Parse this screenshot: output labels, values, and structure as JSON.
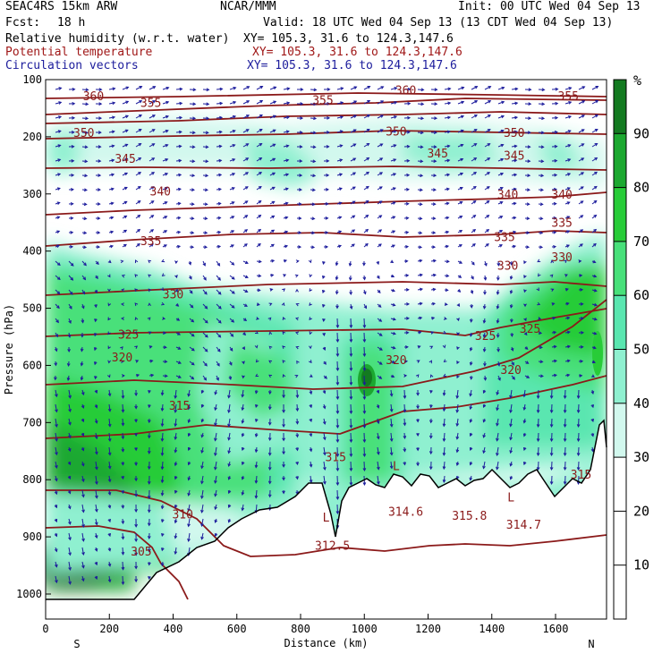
{
  "header": {
    "model": "SEAC4RS 15km ARW",
    "org": "NCAR/MMM",
    "init": "Init: 00 UTC Wed 04 Sep 13",
    "fcst_label": "Fcst:",
    "fcst_value": "18 h",
    "valid": "Valid: 18 UTC Wed 04 Sep 13 (13 CDT Wed 04 Sep 13)",
    "field1": "Relative humidity (w.r.t. water)",
    "field1_xy": "XY= 105.3, 31.6 to 124.3,147.6",
    "field2": "Potential temperature",
    "field2_xy": "XY= 105.3, 31.6 to 124.3,147.6",
    "field3": "Circulation vectors",
    "field3_xy": "XY= 105.3, 31.6 to 124.3,147.6"
  },
  "colors": {
    "theta": "#8b1a1a",
    "vectors": "#1c1c9c",
    "field2_text": "#a01818",
    "field3_text": "#1c1c9c",
    "terrain": "#000000"
  },
  "chart_data": {
    "type": "heatmap",
    "xlabel": "Distance (km)",
    "ylabel": "Pressure (hPa)",
    "xlim": [
      0,
      1760
    ],
    "ylim": [
      1000,
      100
    ],
    "x_ticks": [
      0,
      200,
      400,
      600,
      800,
      1000,
      1200,
      1400,
      1600
    ],
    "y_ticks": [
      100,
      200,
      300,
      400,
      500,
      600,
      700,
      800,
      900,
      1000
    ],
    "end_labels": {
      "left": "S",
      "right": "N"
    },
    "colorbar": {
      "unit": "%",
      "ticks": [
        10,
        20,
        30,
        40,
        50,
        60,
        70,
        80,
        90
      ],
      "levels": [
        0,
        30,
        40,
        50,
        60,
        70,
        80,
        90,
        100
      ],
      "colors": [
        "#ffffff",
        "#d2f8ee",
        "#8ff0d0",
        "#5ae6b0",
        "#48e07a",
        "#28cc38",
        "#1ca830",
        "#137a20"
      ]
    },
    "theta_labels": [
      {
        "text": "360",
        "x": 150,
        "p": 128
      },
      {
        "text": "360",
        "x": 1130,
        "p": 118
      },
      {
        "text": "355",
        "x": 330,
        "p": 140
      },
      {
        "text": "355",
        "x": 870,
        "p": 135
      },
      {
        "text": "355",
        "x": 1640,
        "p": 128
      },
      {
        "text": "350",
        "x": 120,
        "p": 192
      },
      {
        "text": "350",
        "x": 1100,
        "p": 190
      },
      {
        "text": "350",
        "x": 1470,
        "p": 192
      },
      {
        "text": "345",
        "x": 250,
        "p": 238
      },
      {
        "text": "345",
        "x": 1230,
        "p": 228
      },
      {
        "text": "345",
        "x": 1470,
        "p": 232
      },
      {
        "text": "340",
        "x": 360,
        "p": 295
      },
      {
        "text": "340",
        "x": 1450,
        "p": 300
      },
      {
        "text": "340",
        "x": 1620,
        "p": 300
      },
      {
        "text": "335",
        "x": 330,
        "p": 382
      },
      {
        "text": "335",
        "x": 1440,
        "p": 375
      },
      {
        "text": "335",
        "x": 1620,
        "p": 350
      },
      {
        "text": "330",
        "x": 400,
        "p": 475
      },
      {
        "text": "330",
        "x": 1450,
        "p": 425
      },
      {
        "text": "330",
        "x": 1620,
        "p": 410
      },
      {
        "text": "325",
        "x": 260,
        "p": 545
      },
      {
        "text": "325",
        "x": 1380,
        "p": 548
      },
      {
        "text": "325",
        "x": 1520,
        "p": 535
      },
      {
        "text": "320",
        "x": 240,
        "p": 585
      },
      {
        "text": "320",
        "x": 1100,
        "p": 590
      },
      {
        "text": "320",
        "x": 1460,
        "p": 607
      },
      {
        "text": "315",
        "x": 420,
        "p": 670
      },
      {
        "text": "315",
        "x": 910,
        "p": 760
      },
      {
        "text": "315",
        "x": 1680,
        "p": 790
      },
      {
        "text": "314.6",
        "x": 1130,
        "p": 855
      },
      {
        "text": "315.8",
        "x": 1330,
        "p": 862
      },
      {
        "text": "314.7",
        "x": 1500,
        "p": 878
      },
      {
        "text": "312.5",
        "x": 900,
        "p": 915
      },
      {
        "text": "310",
        "x": 430,
        "p": 860
      },
      {
        "text": "305",
        "x": 300,
        "p": 925
      }
    ],
    "low_markers": [
      {
        "text": "L",
        "x": 880,
        "p": 865
      },
      {
        "text": "L",
        "x": 1100,
        "p": 775
      },
      {
        "text": "L",
        "x": 1460,
        "p": 830
      }
    ]
  }
}
